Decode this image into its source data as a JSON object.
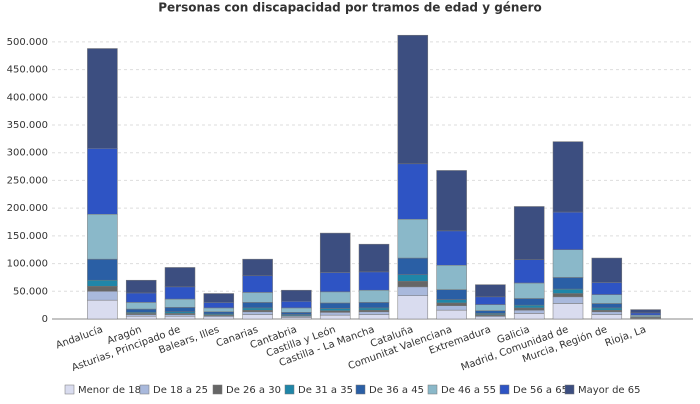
{
  "chart_data": {
    "type": "stacked_bar",
    "title": "Personas con discapacidad por tramos de edad y género",
    "categories": [
      "Andalucía",
      "Aragón",
      "Asturias, Principado de",
      "Balears, Illes",
      "Canarias",
      "Cantabria",
      "Castilla y León",
      "Castilla - La Mancha",
      "Cataluña",
      "Comunitat Valenciana",
      "Extremadura",
      "Galicia",
      "Madrid, Comunidad de",
      "Murcia, Región de",
      "Rioja, La"
    ],
    "series": [
      {
        "name": "Menor de 18",
        "color": "#d9dcef",
        "values": [
          34000,
          5000,
          5000,
          4000,
          8000,
          3000,
          7000,
          8000,
          42000,
          16000,
          4000,
          10000,
          28000,
          8000,
          1000
        ]
      },
      {
        "name": "De 18 a 25",
        "color": "#a9b9dc",
        "values": [
          16000,
          3000,
          3000,
          2000,
          5000,
          2000,
          5000,
          5000,
          16000,
          8000,
          2000,
          6000,
          12000,
          5000,
          1000
        ]
      },
      {
        "name": "De 26 a 30",
        "color": "#666666",
        "values": [
          9000,
          2000,
          2000,
          1000,
          3000,
          1000,
          3000,
          3000,
          10000,
          5000,
          2000,
          4000,
          6000,
          3000,
          500
        ]
      },
      {
        "name": "De 31 a 35",
        "color": "#1f86a8",
        "values": [
          11000,
          2000,
          3000,
          2000,
          4000,
          2000,
          4000,
          4000,
          12000,
          6000,
          2000,
          5000,
          8000,
          4000,
          500
        ]
      },
      {
        "name": "De 36 a 45",
        "color": "#2a5fa5",
        "values": [
          38000,
          6000,
          8000,
          4000,
          10000,
          4000,
          10000,
          10000,
          30000,
          18000,
          5000,
          12000,
          21000,
          8000,
          1000
        ]
      },
      {
        "name": "De 46 a 55",
        "color": "#8ab8c9",
        "values": [
          81000,
          12000,
          15000,
          7000,
          18000,
          8000,
          20000,
          22000,
          70000,
          44000,
          11000,
          28000,
          50000,
          16000,
          3000
        ]
      },
      {
        "name": "De 56 a 65",
        "color": "#2e54c4",
        "values": [
          119000,
          17000,
          22000,
          10000,
          30000,
          12000,
          35000,
          33000,
          100000,
          62000,
          14000,
          42000,
          68000,
          22000,
          4000
        ]
      },
      {
        "name": "Mayor de 65",
        "color": "#3c4e80",
        "values": [
          180000,
          23000,
          35000,
          16000,
          30000,
          20000,
          71000,
          50000,
          232000,
          109000,
          22000,
          96000,
          127000,
          44000,
          6000
        ]
      }
    ],
    "ylim": [
      0,
      525000
    ],
    "yticks": [
      0,
      {
        "value": 50000,
        "label": "50.000"
      },
      {
        "value": 100000,
        "label": "100.000"
      },
      {
        "value": 150000,
        "label": "150.000"
      },
      {
        "value": 200000,
        "label": "200.000"
      },
      {
        "value": 250000,
        "label": "250.000"
      },
      {
        "value": 300000,
        "label": "300.000"
      },
      {
        "value": 350000,
        "label": "350.000"
      },
      {
        "value": 400000,
        "label": "400.000"
      },
      {
        "value": 450000,
        "label": "450.000"
      },
      {
        "value": 500000,
        "label": "500.000"
      }
    ],
    "grid": true
  }
}
